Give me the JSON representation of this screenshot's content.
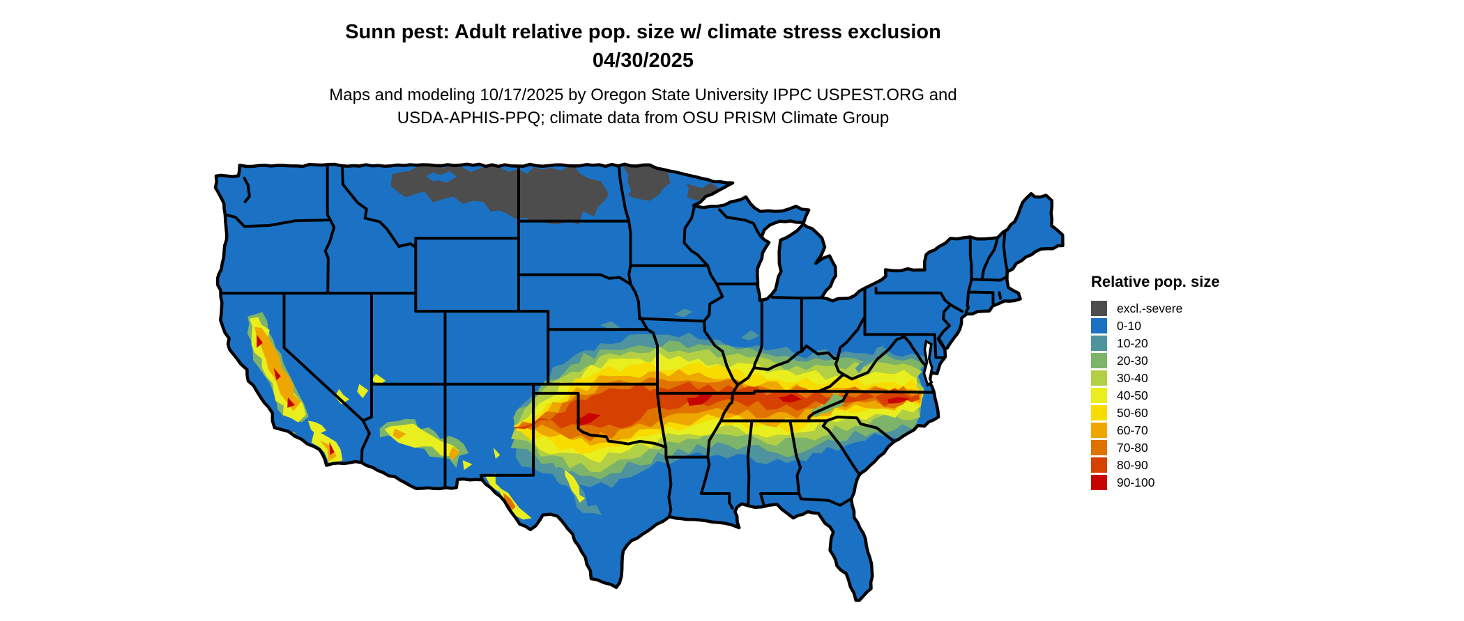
{
  "header": {
    "title_line1": "Sunn pest: Adult relative pop. size w/ climate stress exclusion",
    "title_line2": "04/30/2025",
    "subtitle_line1": "Maps and modeling 10/17/2025 by Oregon State University IPPC USPEST.ORG and",
    "subtitle_line2": "USDA-APHIS-PPQ; climate data from OSU PRISM Climate Group"
  },
  "legend": {
    "title": "Relative pop. size",
    "items": [
      {
        "label": "excl.-severe",
        "color": "#4d4d4d"
      },
      {
        "label": "0-10",
        "color": "#1b72c4"
      },
      {
        "label": "10-20",
        "color": "#4e939e"
      },
      {
        "label": "20-30",
        "color": "#7db469"
      },
      {
        "label": "30-40",
        "color": "#b3cf45"
      },
      {
        "label": "40-50",
        "color": "#e9ee1f"
      },
      {
        "label": "50-60",
        "color": "#f8dc00"
      },
      {
        "label": "60-70",
        "color": "#eea700"
      },
      {
        "label": "70-80",
        "color": "#e07200"
      },
      {
        "label": "80-90",
        "color": "#d64000"
      },
      {
        "label": "90-100",
        "color": "#c80400"
      }
    ]
  },
  "map": {
    "region": "Continental United States",
    "type": "raster heat map of adult relative population size",
    "base_color": "#1b72c4",
    "excluded_color": "#4d4d4d",
    "state_border_color": "#000000",
    "water_color": "#ffffff"
  }
}
